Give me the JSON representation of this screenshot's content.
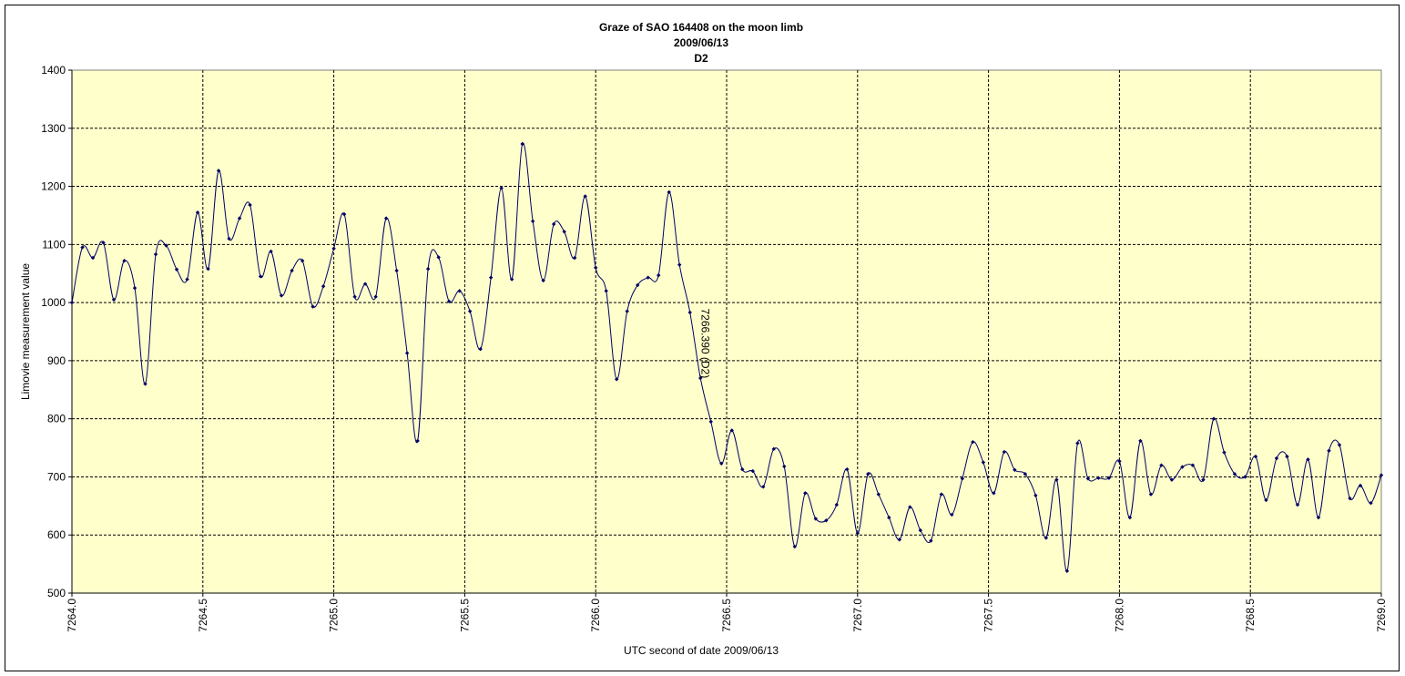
{
  "chart_data": {
    "type": "line",
    "title": [
      "Graze of SAO  164408 on the moon limb",
      "2009/06/13",
      "D2"
    ],
    "x_label": "UTC second of date 2009/06/13",
    "y_label": "Limovie measurement value",
    "annotations": [
      {
        "text": "7266.390 (D2)",
        "x": 7266.39
      }
    ],
    "xlim": [
      7264.0,
      7269.0
    ],
    "xticks": [
      {
        "value": 7264.0,
        "label": "7264.0"
      },
      {
        "value": 7264.5,
        "label": "7264.5"
      },
      {
        "value": 7265.0,
        "label": "7265.0"
      },
      {
        "value": 7265.5,
        "label": "7265.5"
      },
      {
        "value": 7266.0,
        "label": "7266.0"
      },
      {
        "value": 7266.5,
        "label": "7266.5"
      },
      {
        "value": 7267.0,
        "label": "7267.0"
      },
      {
        "value": 7267.5,
        "label": "7267.5"
      },
      {
        "value": 7268.0,
        "label": "7268.0"
      },
      {
        "value": 7268.5,
        "label": "7268.5"
      },
      {
        "value": 7269.0,
        "label": "7269.0"
      }
    ],
    "ylim": [
      500,
      1400
    ],
    "yticks": [
      500,
      600,
      700,
      800,
      900,
      1000,
      1100,
      1200,
      1300,
      1400
    ],
    "grid": true,
    "x": [
      7264.0,
      7264.04,
      7264.08,
      7264.12,
      7264.16,
      7264.2,
      7264.24,
      7264.28,
      7264.32,
      7264.36,
      7264.4,
      7264.44,
      7264.48,
      7264.52,
      7264.56,
      7264.6,
      7264.64,
      7264.68,
      7264.72,
      7264.76,
      7264.8,
      7264.84,
      7264.88,
      7264.92,
      7264.96,
      7265.0,
      7265.04,
      7265.08,
      7265.12,
      7265.16,
      7265.2,
      7265.24,
      7265.28,
      7265.32,
      7265.36,
      7265.4,
      7265.44,
      7265.48,
      7265.52,
      7265.56,
      7265.6,
      7265.64,
      7265.68,
      7265.72,
      7265.76,
      7265.8,
      7265.84,
      7265.88,
      7265.92,
      7265.96,
      7266.0,
      7266.04,
      7266.08,
      7266.12,
      7266.16,
      7266.2,
      7266.24,
      7266.28,
      7266.32,
      7266.36,
      7266.4,
      7266.44,
      7266.48,
      7266.52,
      7266.56,
      7266.6,
      7266.64,
      7266.68,
      7266.72,
      7266.76,
      7266.8,
      7266.84,
      7266.88,
      7266.92,
      7266.96,
      7267.0,
      7267.04,
      7267.08,
      7267.12,
      7267.16,
      7267.2,
      7267.24,
      7267.28,
      7267.32,
      7267.36,
      7267.4,
      7267.44,
      7267.48,
      7267.52,
      7267.56,
      7267.6,
      7267.64,
      7267.68,
      7267.72,
      7267.76,
      7267.8,
      7267.84,
      7267.88,
      7267.92,
      7267.96,
      7268.0,
      7268.04,
      7268.08,
      7268.12,
      7268.16,
      7268.2,
      7268.24,
      7268.28,
      7268.32,
      7268.36,
      7268.4,
      7268.44,
      7268.48,
      7268.52,
      7268.56,
      7268.6,
      7268.64,
      7268.68,
      7268.72,
      7268.76,
      7268.8,
      7268.84,
      7268.88,
      7268.92,
      7268.96,
      7269.0
    ],
    "series": [
      {
        "color": "#000066",
        "values": [
          1000,
          1095,
          1077,
          1103,
          1005,
          1072,
          1025,
          860,
          1083,
          1098,
          1057,
          1040,
          1155,
          1058,
          1227,
          1110,
          1145,
          1168,
          1045,
          1088,
          1012,
          1055,
          1072,
          993,
          1028,
          1093,
          1152,
          1010,
          1032,
          1010,
          1145,
          1055,
          913,
          762,
          1058,
          1078,
          1002,
          1020,
          985,
          920,
          1043,
          1197,
          1040,
          1273,
          1140,
          1038,
          1135,
          1122,
          1077,
          1183,
          1060,
          1020,
          868,
          985,
          1030,
          1043,
          1047,
          1190,
          1065,
          983,
          870,
          795,
          723,
          780,
          713,
          710,
          683,
          748,
          718,
          580,
          672,
          628,
          625,
          652,
          713,
          603,
          705,
          670,
          630,
          592,
          648,
          608,
          590,
          670,
          635,
          697,
          760,
          725,
          672,
          743,
          712,
          705,
          668,
          595,
          695,
          538,
          758,
          697,
          698,
          698,
          727,
          630,
          762,
          670,
          720,
          695,
          717,
          720,
          695,
          800,
          742,
          705,
          700,
          735,
          660,
          732,
          735,
          652,
          730,
          630,
          745,
          755,
          663,
          685,
          655,
          703
        ]
      }
    ]
  }
}
